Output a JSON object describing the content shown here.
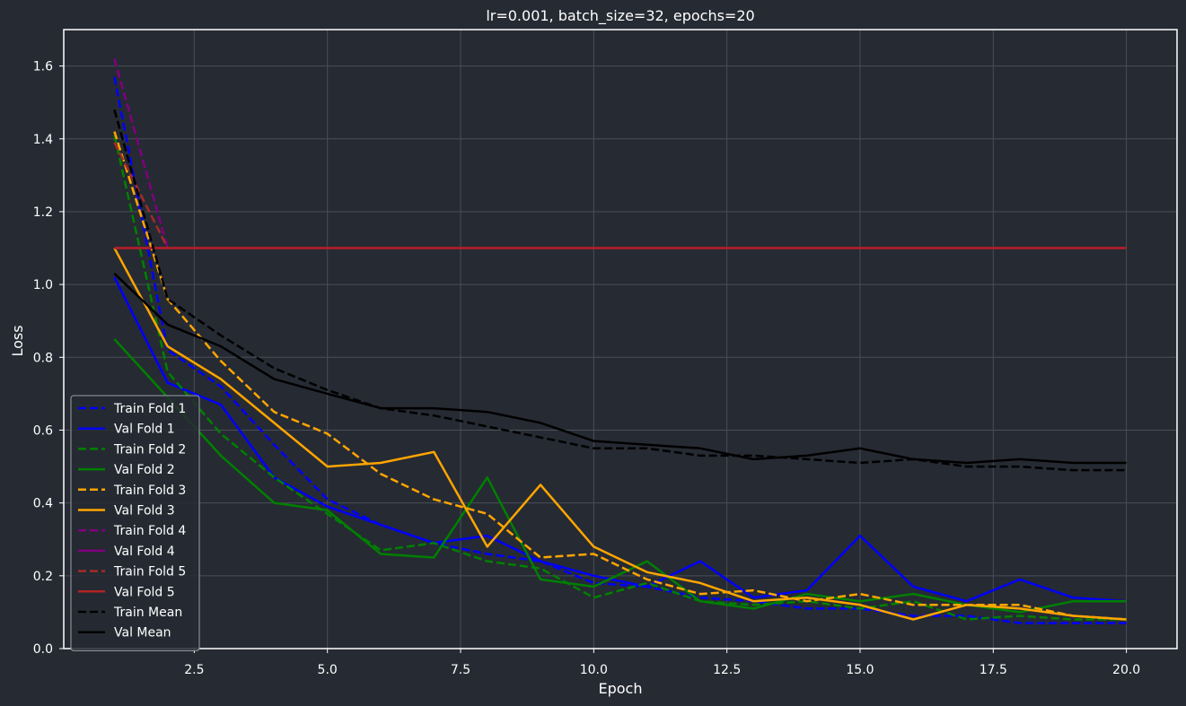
{
  "colors": {
    "background": "#262a33",
    "grid": "#4a4e56",
    "spine": "#ffffff",
    "text": "#ffffff",
    "legend_bg": "#262a33",
    "legend_border": "#9a9ea6"
  },
  "chart_data": {
    "type": "line",
    "title": "lr=0.001, batch_size=32, epochs=20",
    "xlabel": "Epoch",
    "ylabel": "Loss",
    "xlim": [
      0.05,
      20.95
    ],
    "ylim": [
      0,
      1.7
    ],
    "xticks": [
      2.5,
      5.0,
      7.5,
      10.0,
      12.5,
      15.0,
      17.5,
      20.0
    ],
    "xtick_labels": [
      "2.5",
      "5.0",
      "7.5",
      "10.0",
      "12.5",
      "15.0",
      "17.5",
      "20.0"
    ],
    "yticks": [
      0.0,
      0.2,
      0.4,
      0.6,
      0.8,
      1.0,
      1.2,
      1.4,
      1.6
    ],
    "ytick_labels": [
      "0.0",
      "0.2",
      "0.4",
      "0.6",
      "0.8",
      "1.0",
      "1.2",
      "1.4",
      "1.6"
    ],
    "grid": true,
    "legend_position": "lower-left",
    "series": [
      {
        "name": "Train Fold 1",
        "color": "#0000ff",
        "style": "dashed",
        "x": [
          1,
          2,
          3,
          4,
          5,
          6,
          7,
          8,
          9,
          10,
          11,
          12,
          13,
          14,
          15,
          16,
          17,
          18,
          19,
          20
        ],
        "values": [
          1.57,
          0.82,
          0.72,
          0.56,
          0.41,
          0.34,
          0.29,
          0.26,
          0.24,
          0.18,
          0.17,
          0.14,
          0.13,
          0.11,
          0.11,
          0.09,
          0.09,
          0.07,
          0.07,
          0.07
        ]
      },
      {
        "name": "Val Fold 1",
        "color": "#0000ff",
        "style": "solid",
        "x": [
          1,
          2,
          3,
          4,
          5,
          6,
          7,
          8,
          9,
          10,
          11,
          12,
          13,
          14,
          15,
          16,
          17,
          18,
          19,
          20
        ],
        "values": [
          1.02,
          0.73,
          0.67,
          0.47,
          0.39,
          0.34,
          0.29,
          0.31,
          0.24,
          0.2,
          0.17,
          0.24,
          0.14,
          0.16,
          0.31,
          0.17,
          0.13,
          0.19,
          0.14,
          0.13
        ]
      },
      {
        "name": "Train Fold 2",
        "color": "#008000",
        "style": "dashed",
        "x": [
          1,
          2,
          3,
          4,
          5,
          6,
          7,
          8,
          9,
          10,
          11,
          12,
          13,
          14,
          15,
          16,
          17,
          18,
          19,
          20
        ],
        "values": [
          1.41,
          0.76,
          0.59,
          0.47,
          0.37,
          0.27,
          0.29,
          0.24,
          0.22,
          0.14,
          0.18,
          0.13,
          0.12,
          0.13,
          0.11,
          0.13,
          0.08,
          0.09,
          0.08,
          0.08
        ]
      },
      {
        "name": "Val Fold 2",
        "color": "#008000",
        "style": "solid",
        "x": [
          1,
          2,
          3,
          4,
          5,
          6,
          7,
          8,
          9,
          10,
          11,
          12,
          13,
          14,
          15,
          16,
          17,
          18,
          19,
          20
        ],
        "values": [
          0.85,
          0.69,
          0.53,
          0.4,
          0.38,
          0.26,
          0.25,
          0.47,
          0.19,
          0.17,
          0.24,
          0.13,
          0.11,
          0.15,
          0.13,
          0.15,
          0.12,
          0.1,
          0.13,
          0.13
        ]
      },
      {
        "name": "Train Fold 3",
        "color": "#ffa500",
        "style": "dashed",
        "x": [
          1,
          2,
          3,
          4,
          5,
          6,
          7,
          8,
          9,
          10,
          11,
          12,
          13,
          14,
          15,
          16,
          17,
          18,
          19,
          20
        ],
        "values": [
          1.42,
          0.96,
          0.79,
          0.65,
          0.59,
          0.48,
          0.41,
          0.37,
          0.25,
          0.26,
          0.19,
          0.15,
          0.16,
          0.13,
          0.15,
          0.12,
          0.12,
          0.12,
          0.09,
          0.08
        ]
      },
      {
        "name": "Val Fold 3",
        "color": "#ffa500",
        "style": "solid",
        "x": [
          1,
          2,
          3,
          4,
          5,
          6,
          7,
          8,
          9,
          10,
          11,
          12,
          13,
          14,
          15,
          16,
          17,
          18,
          19,
          20
        ],
        "values": [
          1.1,
          0.83,
          0.74,
          0.62,
          0.5,
          0.51,
          0.54,
          0.28,
          0.45,
          0.28,
          0.21,
          0.18,
          0.13,
          0.14,
          0.12,
          0.08,
          0.12,
          0.11,
          0.09,
          0.08
        ]
      },
      {
        "name": "Train Fold 4",
        "color": "#800080",
        "style": "dashed",
        "x": [
          1,
          2
        ],
        "values": [
          1.62,
          1.1
        ]
      },
      {
        "name": "Val Fold 4",
        "color": "#800080",
        "style": "solid",
        "x": [
          1,
          2,
          3,
          4,
          5,
          6,
          7,
          8,
          9,
          10,
          11,
          12,
          13,
          14,
          15,
          16,
          17,
          18,
          19,
          20
        ],
        "values": [
          1.1,
          1.1,
          1.1,
          1.1,
          1.1,
          1.1,
          1.1,
          1.1,
          1.1,
          1.1,
          1.1,
          1.1,
          1.1,
          1.1,
          1.1,
          1.1,
          1.1,
          1.1,
          1.1,
          1.1
        ]
      },
      {
        "name": "Train Fold 5",
        "color": "#a52a2a",
        "style": "dashed",
        "x": [
          1,
          2
        ],
        "values": [
          1.39,
          1.1
        ]
      },
      {
        "name": "Val Fold 5",
        "color": "#b22222",
        "style": "solid",
        "x": [
          1,
          2,
          3,
          4,
          5,
          6,
          7,
          8,
          9,
          10,
          11,
          12,
          13,
          14,
          15,
          16,
          17,
          18,
          19,
          20
        ],
        "values": [
          1.1,
          1.1,
          1.1,
          1.1,
          1.1,
          1.1,
          1.1,
          1.1,
          1.1,
          1.1,
          1.1,
          1.1,
          1.1,
          1.1,
          1.1,
          1.1,
          1.1,
          1.1,
          1.1,
          1.1
        ]
      },
      {
        "name": "Train Mean",
        "color": "#000000",
        "style": "dashed",
        "x": [
          1,
          2,
          3,
          4,
          5,
          6,
          7,
          8,
          9,
          10,
          11,
          12,
          13,
          14,
          15,
          16,
          17,
          18,
          19,
          20
        ],
        "values": [
          1.48,
          0.96,
          0.86,
          0.77,
          0.71,
          0.66,
          0.64,
          0.61,
          0.58,
          0.55,
          0.55,
          0.53,
          0.53,
          0.52,
          0.51,
          0.52,
          0.5,
          0.5,
          0.49,
          0.49
        ]
      },
      {
        "name": "Val Mean",
        "color": "#000000",
        "style": "solid",
        "x": [
          1,
          2,
          3,
          4,
          5,
          6,
          7,
          8,
          9,
          10,
          11,
          12,
          13,
          14,
          15,
          16,
          17,
          18,
          19,
          20
        ],
        "values": [
          1.03,
          0.89,
          0.83,
          0.74,
          0.7,
          0.66,
          0.66,
          0.65,
          0.62,
          0.57,
          0.56,
          0.55,
          0.52,
          0.53,
          0.55,
          0.52,
          0.51,
          0.52,
          0.51,
          0.51
        ]
      }
    ]
  }
}
